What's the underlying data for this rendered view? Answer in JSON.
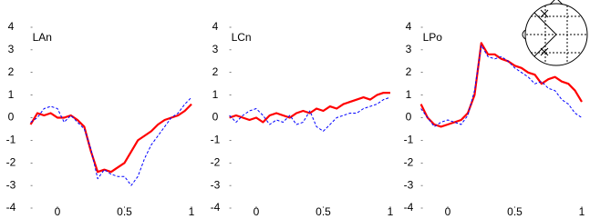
{
  "chart_data": [
    {
      "type": "line",
      "title": "LAn",
      "x": [
        -0.2,
        -0.15,
        -0.1,
        -0.05,
        0,
        0.05,
        0.1,
        0.15,
        0.2,
        0.25,
        0.3,
        0.35,
        0.4,
        0.45,
        0.5,
        0.55,
        0.6,
        0.65,
        0.7,
        0.75,
        0.8,
        0.85,
        0.9,
        0.95,
        1.0
      ],
      "series": [
        {
          "color": "#ff0000",
          "dashed": false,
          "values": [
            -0.3,
            0.2,
            0.1,
            0.2,
            0.0,
            0.0,
            0.1,
            -0.1,
            -0.4,
            -1.5,
            -2.4,
            -2.3,
            -2.4,
            -2.2,
            -2.0,
            -1.5,
            -1.0,
            -0.8,
            -0.6,
            -0.3,
            -0.1,
            0.0,
            0.1,
            0.3,
            0.6
          ]
        },
        {
          "color": "#0000ff",
          "dashed": true,
          "values": [
            -0.2,
            0.0,
            0.4,
            0.5,
            0.4,
            -0.2,
            0.1,
            -0.2,
            -0.5,
            -1.4,
            -2.7,
            -2.3,
            -2.5,
            -2.6,
            -2.6,
            -3.0,
            -2.6,
            -1.8,
            -1.2,
            -0.8,
            -0.4,
            0.0,
            0.2,
            0.6,
            0.9
          ]
        }
      ],
      "xlim": [
        -0.2,
        1.0
      ],
      "xticks": [
        0,
        0.5,
        1
      ],
      "ylim": [
        -4,
        4
      ],
      "yticks": [
        -4,
        -3,
        -2,
        -1,
        0,
        1,
        2,
        3,
        4
      ]
    },
    {
      "type": "line",
      "title": "LCn",
      "x": [
        -0.2,
        -0.15,
        -0.1,
        -0.05,
        0,
        0.05,
        0.1,
        0.15,
        0.2,
        0.25,
        0.3,
        0.35,
        0.4,
        0.45,
        0.5,
        0.55,
        0.6,
        0.65,
        0.7,
        0.75,
        0.8,
        0.85,
        0.9,
        0.95,
        1.0
      ],
      "series": [
        {
          "color": "#ff0000",
          "dashed": false,
          "values": [
            0.0,
            0.1,
            0.0,
            -0.1,
            0.0,
            -0.2,
            0.1,
            0.2,
            0.1,
            0.0,
            0.2,
            0.3,
            0.2,
            0.4,
            0.3,
            0.5,
            0.4,
            0.6,
            0.7,
            0.8,
            0.9,
            0.8,
            1.0,
            1.1,
            1.1
          ]
        },
        {
          "color": "#0000ff",
          "dashed": true,
          "values": [
            0.1,
            -0.2,
            0.1,
            0.3,
            0.4,
            0.1,
            -0.3,
            -0.1,
            -0.2,
            0.1,
            -0.3,
            -0.2,
            0.3,
            -0.4,
            -0.6,
            -0.3,
            0.0,
            0.1,
            0.2,
            0.2,
            0.4,
            0.5,
            0.6,
            0.8,
            0.9
          ]
        }
      ],
      "xlim": [
        -0.2,
        1.0
      ],
      "xticks": [
        0,
        0.5,
        1
      ],
      "ylim": [
        -4,
        4
      ],
      "yticks": [
        -4,
        -3,
        -2,
        -1,
        0,
        1,
        2,
        3,
        4
      ]
    },
    {
      "type": "line",
      "title": "LPo",
      "x": [
        -0.2,
        -0.15,
        -0.1,
        -0.05,
        0,
        0.05,
        0.1,
        0.15,
        0.2,
        0.25,
        0.3,
        0.35,
        0.4,
        0.45,
        0.5,
        0.55,
        0.6,
        0.65,
        0.7,
        0.75,
        0.8,
        0.85,
        0.9,
        0.95,
        1.0
      ],
      "series": [
        {
          "color": "#ff0000",
          "dashed": false,
          "values": [
            0.6,
            0.0,
            -0.3,
            -0.4,
            -0.3,
            -0.2,
            -0.1,
            0.2,
            1.0,
            3.3,
            2.8,
            2.8,
            2.6,
            2.5,
            2.3,
            2.2,
            2.0,
            1.9,
            1.5,
            1.7,
            1.8,
            1.6,
            1.5,
            1.2,
            0.7
          ]
        },
        {
          "color": "#0000ff",
          "dashed": true,
          "values": [
            0.4,
            0.0,
            -0.4,
            -0.2,
            -0.1,
            -0.2,
            -0.3,
            0.1,
            1.2,
            3.2,
            2.7,
            2.6,
            2.7,
            2.5,
            2.2,
            2.0,
            1.8,
            1.5,
            1.6,
            1.3,
            1.2,
            0.8,
            0.6,
            0.2,
            0.0
          ]
        }
      ],
      "xlim": [
        -0.2,
        1.0
      ],
      "xticks": [
        0,
        0.5,
        1
      ],
      "ylim": [
        -4,
        4
      ],
      "yticks": [
        -4,
        -3,
        -2,
        -1,
        0,
        1,
        2,
        3,
        4
      ]
    }
  ]
}
